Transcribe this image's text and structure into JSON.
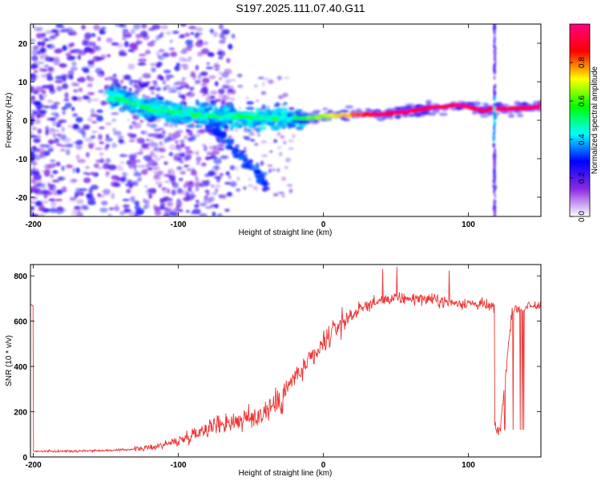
{
  "title": "S197.2025.111.07.40.G11",
  "chart_data": [
    {
      "type": "heatmap",
      "xlabel": "Height of straight line (km)",
      "ylabel": "Frequency (Hz)",
      "xlim": [
        -202,
        150
      ],
      "ylim": [
        -25,
        25
      ],
      "xticks": [
        -200,
        -100,
        0,
        100
      ],
      "yticks": [
        -20,
        -10,
        0,
        10,
        20
      ],
      "colorbar": {
        "label": "Normalized spectral amplitude",
        "range": [
          0,
          1
        ],
        "ticks": [
          "0.0",
          "0.2",
          "0.4",
          "0.6",
          "0.8"
        ],
        "colors": [
          "#ffffff",
          "#8a2be2",
          "#0000ff",
          "#00ffff",
          "#00ff00",
          "#ffff00",
          "#ff0000",
          "#ff0080"
        ]
      },
      "ridge": {
        "x": [
          -145,
          -120,
          -100,
          -80,
          -60,
          -40,
          -25,
          -10,
          0,
          20,
          40,
          60,
          80,
          95,
          110,
          120,
          135,
          150
        ],
        "freq": [
          6,
          3,
          2,
          1,
          1,
          0.5,
          0.5,
          0.5,
          1,
          1.5,
          1.5,
          2.5,
          3.5,
          4,
          2.5,
          3,
          3,
          3.5
        ]
      }
    },
    {
      "type": "line",
      "xlabel": "Height of straight line (km)",
      "ylabel": "SNR (10 * v/v)",
      "xlim": [
        -202,
        150
      ],
      "ylim": [
        0,
        850
      ],
      "xticks": [
        -200,
        -100,
        0,
        100
      ],
      "yticks": [
        0,
        200,
        400,
        600,
        800
      ],
      "color": "#ee3333",
      "series": [
        {
          "x": [
            -200,
            -180,
            -160,
            -140,
            -120,
            -100,
            -90,
            -80,
            -70,
            -60,
            -50,
            -40,
            -30,
            -25,
            -20,
            -15,
            -10,
            -5,
            0,
            5,
            10,
            20,
            30,
            40,
            50,
            60,
            70,
            80,
            90,
            100,
            110,
            118,
            122,
            130,
            140,
            150
          ],
          "y": [
            25,
            25,
            28,
            30,
            40,
            70,
            100,
            130,
            150,
            160,
            170,
            200,
            250,
            300,
            350,
            380,
            420,
            450,
            500,
            540,
            580,
            630,
            670,
            690,
            700,
            700,
            700,
            690,
            680,
            680,
            670,
            660,
            120,
            650,
            660,
            670
          ]
        }
      ]
    }
  ]
}
